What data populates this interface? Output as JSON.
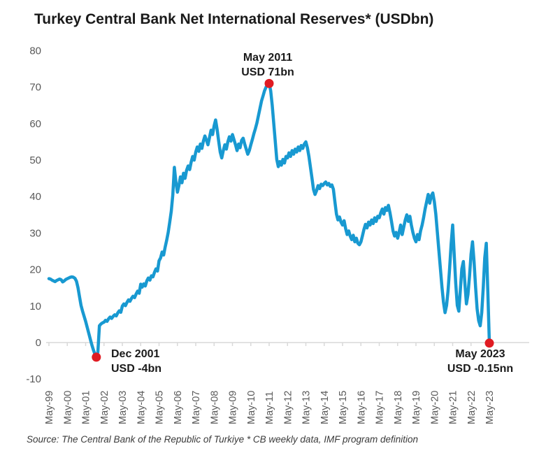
{
  "title": "Turkey Central Bank Net International Reserves* (USDbn)",
  "source_note": "Source: The Central Bank of the Republic of Turkiye * CB weekly data, IMF program definition",
  "colors": {
    "line": "#1899d1",
    "marker": "#e01b22",
    "axis": "#d9d9d9",
    "tick_label": "#595959"
  },
  "annotations": {
    "peak": {
      "line1": "May 2011",
      "line2": "USD 71bn"
    },
    "trough": {
      "line1": "Dec 2001",
      "line2": "USD -4bn"
    },
    "end": {
      "line1": "May 2023",
      "line2": "USD -0.15nn"
    }
  },
  "chart_data": {
    "type": "line",
    "title": "Turkey Central Bank Net International Reserves* (USDbn)",
    "series_name": "Net international reserves (USDbn)",
    "frequency": "monthly",
    "x_start": "1999-05",
    "x_end": "2023-05",
    "x_tick_labels": [
      "May-99",
      "May-00",
      "May-01",
      "May-02",
      "May-03",
      "May-04",
      "May-05",
      "May-06",
      "May-07",
      "May-08",
      "May-09",
      "May-10",
      "May-11",
      "May-12",
      "May-13",
      "May-14",
      "May-15",
      "May-16",
      "May-17",
      "May-18",
      "May-19",
      "May-20",
      "May-21",
      "May-22",
      "May-23"
    ],
    "y_ticks": [
      80,
      70,
      60,
      50,
      40,
      30,
      20,
      10,
      0,
      -10
    ],
    "ylim": [
      -10,
      80
    ],
    "grid": false,
    "legend": null,
    "values": [
      17.5,
      17.4,
      17.1,
      16.9,
      16.7,
      17.0,
      17.2,
      17.4,
      17.2,
      16.6,
      16.9,
      17.3,
      17.5,
      17.7,
      17.9,
      18.0,
      17.9,
      17.6,
      16.8,
      15.0,
      12.5,
      10.2,
      8.6,
      7.2,
      5.8,
      4.2,
      2.6,
      1.0,
      -0.6,
      -1.9,
      -3.1,
      -4.0,
      -2.6,
      4.6,
      5.1,
      5.4,
      5.6,
      6.1,
      5.8,
      6.5,
      7.0,
      6.6,
      7.2,
      7.6,
      7.3,
      8.1,
      8.7,
      8.3,
      10.0,
      10.6,
      10.1,
      11.0,
      11.7,
      11.3,
      12.1,
      12.7,
      12.3,
      13.3,
      14.1,
      13.5,
      16.0,
      15.2,
      16.1,
      15.5,
      16.9,
      17.7,
      17.1,
      18.3,
      18.0,
      19.2,
      20.2,
      19.6,
      22.4,
      23.2,
      24.8,
      24.0,
      26.2,
      28.0,
      30.2,
      33.0,
      36.0,
      40.5,
      48.0,
      44.0,
      41.2,
      43.0,
      45.4,
      43.8,
      46.4,
      45.0,
      47.2,
      48.4,
      47.4,
      49.4,
      51.0,
      50.0,
      52.2,
      53.6,
      52.4,
      54.4,
      53.2,
      55.2,
      56.6,
      55.4,
      54.2,
      56.2,
      58.2,
      57.0,
      59.4,
      61.0,
      58.4,
      55.2,
      52.2,
      50.6,
      52.6,
      54.2,
      53.0,
      55.0,
      56.4,
      55.2,
      57.0,
      55.6,
      54.2,
      52.6,
      54.4,
      53.4,
      55.4,
      56.0,
      54.4,
      53.0,
      51.6,
      52.6,
      54.2,
      55.6,
      57.2,
      58.6,
      60.2,
      62.2,
      64.2,
      66.2,
      67.6,
      69.0,
      70.0,
      70.5,
      71.0,
      69.0,
      65.0,
      60.0,
      55.0,
      50.2,
      48.2,
      49.6,
      48.6,
      50.2,
      49.2,
      51.0,
      50.6,
      52.0,
      51.0,
      52.6,
      51.6,
      53.0,
      52.2,
      53.6,
      52.6,
      54.0,
      53.2,
      54.4,
      55.0,
      53.4,
      51.0,
      48.0,
      45.0,
      42.0,
      40.6,
      41.6,
      43.0,
      42.2,
      43.4,
      43.0,
      43.6,
      44.0,
      43.2,
      43.6,
      42.8,
      43.2,
      42.0,
      38.5,
      35.2,
      33.6,
      34.4,
      33.0,
      32.2,
      33.4,
      31.2,
      29.6,
      30.6,
      29.2,
      28.2,
      29.4,
      27.6,
      28.6,
      27.2,
      26.8,
      27.6,
      29.2,
      31.0,
      32.4,
      31.4,
      33.0,
      32.2,
      33.6,
      32.6,
      34.2,
      33.2,
      34.6,
      34.2,
      35.6,
      36.6,
      35.2,
      37.0,
      36.2,
      37.6,
      35.6,
      33.2,
      30.6,
      29.2,
      30.2,
      28.6,
      30.2,
      32.2,
      29.6,
      31.6,
      33.6,
      35.0,
      33.2,
      34.6,
      32.2,
      30.2,
      28.6,
      27.6,
      29.6,
      28.2,
      30.6,
      32.2,
      34.2,
      36.6,
      38.6,
      40.6,
      38.2,
      40.2,
      41.0,
      38.6,
      35.2,
      30.2,
      25.2,
      20.2,
      15.2,
      11.0,
      8.2,
      10.2,
      14.2,
      20.2,
      27.0,
      32.2,
      24.2,
      16.2,
      10.2,
      8.6,
      14.2,
      20.2,
      22.2,
      16.2,
      10.6,
      13.2,
      18.2,
      24.2,
      27.6,
      22.2,
      15.2,
      9.2,
      6.0,
      4.6,
      8.2,
      15.2,
      23.2,
      27.2,
      14.0,
      -0.15
    ],
    "markers": [
      {
        "label": "Dec 2001",
        "index": 31,
        "value": -4.0
      },
      {
        "label": "May 2011",
        "index": 144,
        "value": 71.0
      },
      {
        "label": "May 2023",
        "index": 288,
        "value": -0.15
      }
    ]
  }
}
